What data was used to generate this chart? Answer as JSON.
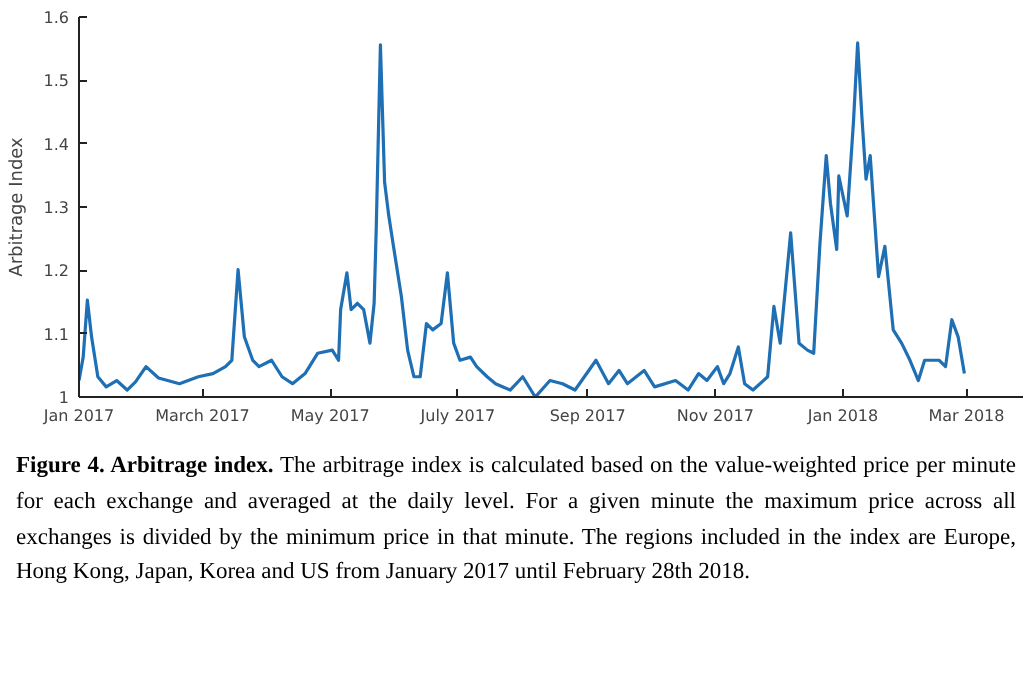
{
  "chart_data": {
    "type": "line",
    "title": "Figure 4. Arbitrage index.",
    "ylabel": "Arbitrage Index",
    "annotations": [
      "The arbitrage index is calculated based on the value-weighted price per minute for each exchange and averaged at the daily level. For a given minute the maximum price across all exchanges is divided by the minimum price in that minute.  The regions included in the index are Europe, Hong Kong, Japan, Korea and US from January 2017 until February 28th 2018."
    ],
    "x": [
      "2017-01-01",
      "2017-01-03",
      "2017-01-05",
      "2017-01-07",
      "2017-01-10",
      "2017-01-14",
      "2017-01-19",
      "2017-01-24",
      "2017-01-28",
      "2017-02-02",
      "2017-02-08",
      "2017-02-18",
      "2017-02-27",
      "2017-03-06",
      "2017-03-12",
      "2017-03-15",
      "2017-03-18",
      "2017-03-21",
      "2017-03-25",
      "2017-03-28",
      "2017-04-03",
      "2017-04-08",
      "2017-04-13",
      "2017-04-19",
      "2017-04-25",
      "2017-05-02",
      "2017-05-05",
      "2017-05-06",
      "2017-05-09",
      "2017-05-11",
      "2017-05-14",
      "2017-05-17",
      "2017-05-20",
      "2017-05-22",
      "2017-05-23",
      "2017-05-25",
      "2017-05-27",
      "2017-05-29",
      "2017-05-31",
      "2017-06-04",
      "2017-06-07",
      "2017-06-10",
      "2017-06-13",
      "2017-06-16",
      "2017-06-19",
      "2017-06-23",
      "2017-06-26",
      "2017-06-29",
      "2017-07-02",
      "2017-07-07",
      "2017-07-10",
      "2017-07-15",
      "2017-07-19",
      "2017-07-26",
      "2017-08-01",
      "2017-08-07",
      "2017-08-14",
      "2017-08-20",
      "2017-08-26",
      "2017-09-05",
      "2017-09-11",
      "2017-09-16",
      "2017-09-20",
      "2017-09-28",
      "2017-10-03",
      "2017-10-13",
      "2017-10-19",
      "2017-10-24",
      "2017-10-28",
      "2017-11-02",
      "2017-11-05",
      "2017-11-08",
      "2017-11-12",
      "2017-11-15",
      "2017-11-19",
      "2017-11-26",
      "2017-11-29",
      "2017-12-02",
      "2017-12-07",
      "2017-12-11",
      "2017-12-15",
      "2017-12-18",
      "2017-12-21",
      "2017-12-24",
      "2017-12-26",
      "2017-12-29",
      "2017-12-30",
      "2018-01-03",
      "2018-01-06",
      "2018-01-08",
      "2018-01-10",
      "2018-01-12",
      "2018-01-14",
      "2018-01-18",
      "2018-01-21",
      "2018-01-25",
      "2018-01-29",
      "2018-02-02",
      "2018-02-06",
      "2018-02-09",
      "2018-02-16",
      "2018-02-19",
      "2018-02-22",
      "2018-02-25",
      "2018-02-28"
    ],
    "series": [
      {
        "color": "#1f6fb4",
        "values": [
          1.026,
          1.063,
          1.153,
          1.095,
          1.032,
          1.016,
          1.026,
          1.011,
          1.024,
          1.048,
          1.03,
          1.021,
          1.032,
          1.037,
          1.048,
          1.058,
          1.201,
          1.095,
          1.058,
          1.048,
          1.058,
          1.032,
          1.021,
          1.037,
          1.069,
          1.074,
          1.058,
          1.138,
          1.196,
          1.138,
          1.148,
          1.138,
          1.085,
          1.148,
          1.265,
          1.556,
          1.339,
          1.286,
          1.243,
          1.159,
          1.074,
          1.032,
          1.032,
          1.116,
          1.106,
          1.116,
          1.196,
          1.085,
          1.058,
          1.063,
          1.048,
          1.032,
          1.021,
          1.011,
          1.032,
          1.0,
          1.026,
          1.021,
          1.011,
          1.058,
          1.021,
          1.042,
          1.021,
          1.042,
          1.016,
          1.026,
          1.011,
          1.037,
          1.026,
          1.048,
          1.021,
          1.037,
          1.079,
          1.021,
          1.011,
          1.032,
          1.143,
          1.085,
          1.259,
          1.085,
          1.074,
          1.069,
          1.243,
          1.381,
          1.306,
          1.233,
          1.349,
          1.286,
          1.434,
          1.559,
          1.444,
          1.344,
          1.381,
          1.19,
          1.238,
          1.106,
          1.085,
          1.058,
          1.026,
          1.058,
          1.058,
          1.048,
          1.122,
          1.095,
          1.037
        ]
      }
    ],
    "xlim": [
      "2017-01-01",
      "2018-03-28"
    ],
    "xticks": [
      {
        "value": "2017-01-01",
        "label": "Jan 2017"
      },
      {
        "value": "2017-03-01",
        "label": "March 2017"
      },
      {
        "value": "2017-05-01",
        "label": "May 2017"
      },
      {
        "value": "2017-07-01",
        "label": "July 2017"
      },
      {
        "value": "2017-09-01",
        "label": "Sep 2017"
      },
      {
        "value": "2017-11-01",
        "label": "Nov 2017"
      },
      {
        "value": "2018-01-01",
        "label": "Jan 2018"
      },
      {
        "value": "2018-03-01",
        "label": "Mar 2018"
      }
    ],
    "ylim": [
      1,
      1.6
    ],
    "yticks": [
      1,
      1.1,
      1.2,
      1.3,
      1.4,
      1.5,
      1.6
    ],
    "grid": false,
    "marker": "none",
    "line_style": "solid"
  }
}
